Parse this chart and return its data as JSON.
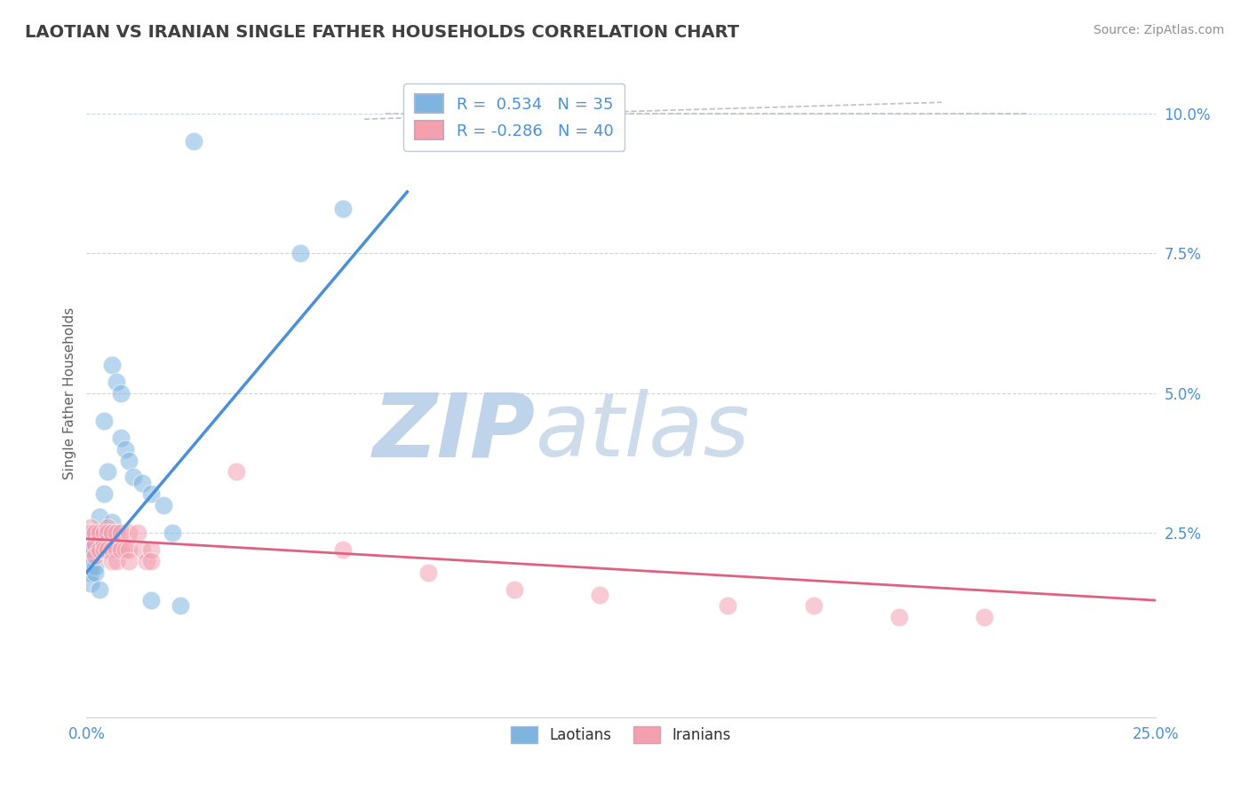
{
  "title": "LAOTIAN VS IRANIAN SINGLE FATHER HOUSEHOLDS CORRELATION CHART",
  "source": "Source: ZipAtlas.com",
  "xlim": [
    0.0,
    0.25
  ],
  "ylim": [
    -0.008,
    0.108
  ],
  "ylabel": "Single Father Households",
  "legend_blue_r": "R =  0.534",
  "legend_blue_n": "N = 35",
  "legend_pink_r": "R = -0.286",
  "legend_pink_n": "N = 40",
  "blue_scatter": [
    [
      0.001,
      0.0235
    ],
    [
      0.001,
      0.022
    ],
    [
      0.001,
      0.024
    ],
    [
      0.001,
      0.021
    ],
    [
      0.001,
      0.019
    ],
    [
      0.001,
      0.018
    ],
    [
      0.001,
      0.016
    ],
    [
      0.002,
      0.025
    ],
    [
      0.002,
      0.023
    ],
    [
      0.002,
      0.019
    ],
    [
      0.002,
      0.018
    ],
    [
      0.003,
      0.028
    ],
    [
      0.003,
      0.024
    ],
    [
      0.003,
      0.015
    ],
    [
      0.004,
      0.032
    ],
    [
      0.004,
      0.045
    ],
    [
      0.005,
      0.036
    ],
    [
      0.005,
      0.025
    ],
    [
      0.006,
      0.055
    ],
    [
      0.006,
      0.027
    ],
    [
      0.007,
      0.052
    ],
    [
      0.008,
      0.05
    ],
    [
      0.008,
      0.042
    ],
    [
      0.009,
      0.04
    ],
    [
      0.01,
      0.038
    ],
    [
      0.011,
      0.035
    ],
    [
      0.013,
      0.034
    ],
    [
      0.015,
      0.032
    ],
    [
      0.018,
      0.03
    ],
    [
      0.02,
      0.025
    ],
    [
      0.015,
      0.013
    ],
    [
      0.022,
      0.012
    ],
    [
      0.025,
      0.095
    ],
    [
      0.06,
      0.083
    ],
    [
      0.05,
      0.075
    ]
  ],
  "pink_scatter": [
    [
      0.001,
      0.026
    ],
    [
      0.001,
      0.025
    ],
    [
      0.001,
      0.022
    ],
    [
      0.002,
      0.025
    ],
    [
      0.002,
      0.023
    ],
    [
      0.002,
      0.021
    ],
    [
      0.003,
      0.025
    ],
    [
      0.003,
      0.022
    ],
    [
      0.004,
      0.025
    ],
    [
      0.004,
      0.023
    ],
    [
      0.004,
      0.022
    ],
    [
      0.005,
      0.026
    ],
    [
      0.005,
      0.025
    ],
    [
      0.005,
      0.022
    ],
    [
      0.006,
      0.025
    ],
    [
      0.006,
      0.022
    ],
    [
      0.006,
      0.02
    ],
    [
      0.007,
      0.025
    ],
    [
      0.007,
      0.022
    ],
    [
      0.007,
      0.02
    ],
    [
      0.008,
      0.025
    ],
    [
      0.008,
      0.022
    ],
    [
      0.009,
      0.022
    ],
    [
      0.01,
      0.025
    ],
    [
      0.01,
      0.022
    ],
    [
      0.01,
      0.02
    ],
    [
      0.012,
      0.025
    ],
    [
      0.013,
      0.022
    ],
    [
      0.014,
      0.02
    ],
    [
      0.015,
      0.022
    ],
    [
      0.015,
      0.02
    ],
    [
      0.035,
      0.036
    ],
    [
      0.06,
      0.022
    ],
    [
      0.08,
      0.018
    ],
    [
      0.1,
      0.015
    ],
    [
      0.12,
      0.014
    ],
    [
      0.15,
      0.012
    ],
    [
      0.17,
      0.012
    ],
    [
      0.19,
      0.01
    ],
    [
      0.21,
      0.01
    ]
  ],
  "blue_line": [
    [
      0.0,
      0.018
    ],
    [
      0.075,
      0.086
    ]
  ],
  "pink_line": [
    [
      0.0,
      0.024
    ],
    [
      0.25,
      0.013
    ]
  ],
  "diagonal_line": [
    [
      0.06,
      0.1
    ],
    [
      0.2,
      0.1
    ]
  ],
  "blue_color": "#7eb5e0",
  "pink_color": "#f4a0b0",
  "blue_line_color": "#4a90d9",
  "pink_line_color": "#e06080",
  "diagonal_color": "#c0c0c0",
  "watermark_color": "#d0dff0",
  "grid_color": "#c8d4e8",
  "background_color": "#ffffff",
  "title_color": "#404040",
  "axis_tick_color": "#4a90d9",
  "ylabel_color": "#606060",
  "source_color": "#909090",
  "yticks": [
    0.025,
    0.05,
    0.075,
    0.1
  ],
  "ytick_labels": [
    "2.5%",
    "5.0%",
    "7.5%",
    "10.0%"
  ],
  "xticks": [
    0.0,
    0.25
  ],
  "xtick_labels": [
    "0.0%",
    "25.0%"
  ]
}
